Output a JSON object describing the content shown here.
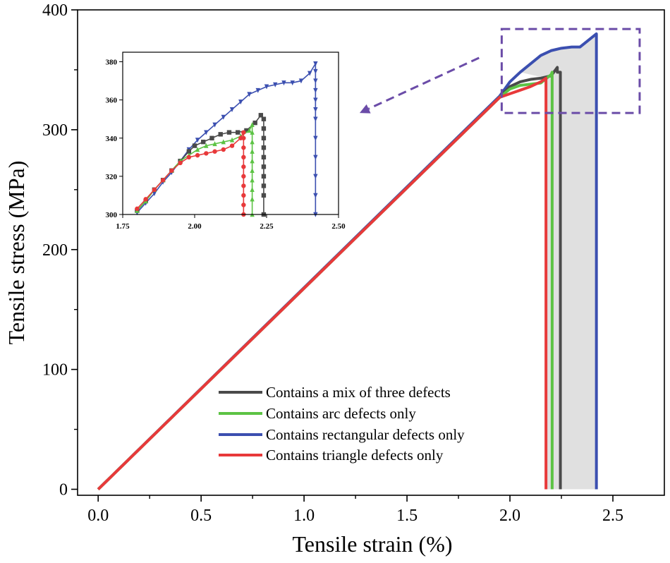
{
  "chart_data": [
    {
      "type": "line",
      "name": "main",
      "xlabel": "Tensile strain (%)",
      "ylabel": "Tensile stress (MPa)",
      "xlim": [
        -0.1,
        2.75
      ],
      "ylim": [
        -5,
        400
      ],
      "xticks": [
        0.0,
        0.5,
        1.0,
        1.5,
        2.0,
        2.5
      ],
      "xtick_labels": [
        "0.0",
        "0.5",
        "1.0",
        "1.5",
        "2.0",
        "2.5"
      ],
      "yticks": [
        0,
        100,
        200,
        300,
        400
      ],
      "ytick_labels": [
        "0",
        "100",
        "200",
        "300",
        "400"
      ],
      "shaded_region": {
        "description": "area under curves between failure strains",
        "color": "#e0e0e0"
      },
      "highlight_box": {
        "x": [
          1.96,
          2.63
        ],
        "y": [
          314,
          384
        ],
        "color": "#6b4ca8"
      },
      "series": [
        {
          "name": "Contains a mix of three defects",
          "color": "#4a4a4a",
          "x": [
            0,
            1.95,
            2.0,
            2.05,
            2.1,
            2.15,
            2.2,
            2.23,
            2.23,
            2.245,
            2.245
          ],
          "y": [
            0,
            327,
            336,
            340,
            342,
            343,
            345,
            352,
            348,
            348,
            0
          ]
        },
        {
          "name": "Contains arc defects only",
          "color": "#5cc344",
          "x": [
            0,
            1.95,
            2.0,
            2.05,
            2.1,
            2.15,
            2.2,
            2.205,
            2.205
          ],
          "y": [
            0,
            327,
            334,
            337,
            338,
            339,
            346,
            348,
            0
          ]
        },
        {
          "name": "Contains rectangular defects only",
          "color": "#3b4fb0",
          "x": [
            0,
            1.95,
            2.0,
            2.05,
            2.1,
            2.15,
            2.2,
            2.25,
            2.3,
            2.34,
            2.42,
            2.42
          ],
          "y": [
            0,
            328,
            340,
            348,
            355,
            362,
            366,
            368,
            369,
            369,
            380,
            0
          ]
        },
        {
          "name": "Contains triangle defects only",
          "color": "#e8393a",
          "x": [
            0,
            1.95,
            2.0,
            2.05,
            2.1,
            2.15,
            2.175,
            2.175
          ],
          "y": [
            0,
            327,
            330,
            333,
            336,
            340,
            343,
            0
          ]
        }
      ],
      "arrow": {
        "from": [
          1.85,
          360
        ],
        "to": [
          1.27,
          314
        ],
        "color": "#6b4ca8"
      }
    },
    {
      "type": "line",
      "name": "inset",
      "xlim": [
        1.75,
        2.5
      ],
      "ylim": [
        300,
        385
      ],
      "xticks": [
        1.75,
        2.0,
        2.25,
        2.5
      ],
      "xtick_labels": [
        "1.75",
        "2.00",
        "2.25",
        "2.50"
      ],
      "yticks": [
        300,
        320,
        340,
        360,
        380
      ],
      "ytick_labels": [
        "300",
        "320",
        "340",
        "360",
        "380"
      ],
      "series": [
        {
          "name": "Contains a mix of three defects",
          "color": "#4a4a4a",
          "marker": "square",
          "x": [
            1.8,
            1.83,
            1.86,
            1.89,
            1.92,
            1.95,
            1.98,
            2.0,
            2.03,
            2.06,
            2.09,
            2.12,
            2.15,
            2.18,
            2.21,
            2.23,
            2.24,
            2.24,
            2.24,
            2.24,
            2.24,
            2.24,
            2.24,
            2.24,
            2.24,
            2.24
          ],
          "y": [
            302,
            307,
            313,
            318,
            323,
            328,
            333,
            336,
            338,
            340,
            342,
            343,
            343,
            344,
            348,
            352,
            350,
            345,
            340,
            335,
            330,
            325,
            320,
            315,
            310,
            300
          ]
        },
        {
          "name": "Contains arc defects only",
          "color": "#5cc344",
          "marker": "triangle-up",
          "x": [
            1.8,
            1.83,
            1.86,
            1.89,
            1.92,
            1.95,
            1.98,
            2.01,
            2.04,
            2.07,
            2.1,
            2.13,
            2.16,
            2.19,
            2.2,
            2.2,
            2.2,
            2.2,
            2.2,
            2.2,
            2.2,
            2.2,
            2.2,
            2.2
          ],
          "y": [
            302,
            307,
            313,
            318,
            323,
            328,
            331,
            334,
            336,
            337,
            338,
            339,
            341,
            344,
            347,
            343,
            338,
            333,
            328,
            323,
            318,
            313,
            308,
            300
          ]
        },
        {
          "name": "Contains rectangular defects only",
          "color": "#3b4fb0",
          "marker": "triangle-down",
          "x": [
            1.8,
            1.83,
            1.86,
            1.89,
            1.92,
            1.95,
            1.98,
            2.01,
            2.04,
            2.07,
            2.1,
            2.13,
            2.16,
            2.19,
            2.22,
            2.25,
            2.28,
            2.31,
            2.34,
            2.37,
            2.4,
            2.42,
            2.42,
            2.42,
            2.42,
            2.42,
            2.42,
            2.42,
            2.42,
            2.42,
            2.42,
            2.42,
            2.42
          ],
          "y": [
            301,
            306,
            311,
            317,
            322,
            328,
            334,
            339,
            343,
            347,
            351,
            355,
            359,
            363,
            365,
            367,
            368,
            369,
            369,
            370,
            374,
            379,
            375,
            370,
            365,
            360,
            355,
            350,
            340,
            330,
            320,
            310,
            300
          ]
        },
        {
          "name": "Contains triangle defects only",
          "color": "#e8393a",
          "marker": "circle",
          "x": [
            1.8,
            1.83,
            1.86,
            1.89,
            1.92,
            1.95,
            1.98,
            2.01,
            2.04,
            2.07,
            2.1,
            2.13,
            2.16,
            2.17,
            2.17,
            2.17,
            2.17,
            2.17,
            2.17,
            2.17,
            2.17,
            2.17,
            2.17
          ],
          "y": [
            303,
            308,
            313,
            318,
            323,
            327,
            330,
            331,
            332,
            333,
            334,
            336,
            340,
            343,
            340,
            335,
            330,
            325,
            320,
            315,
            310,
            305,
            300
          ]
        }
      ]
    }
  ]
}
